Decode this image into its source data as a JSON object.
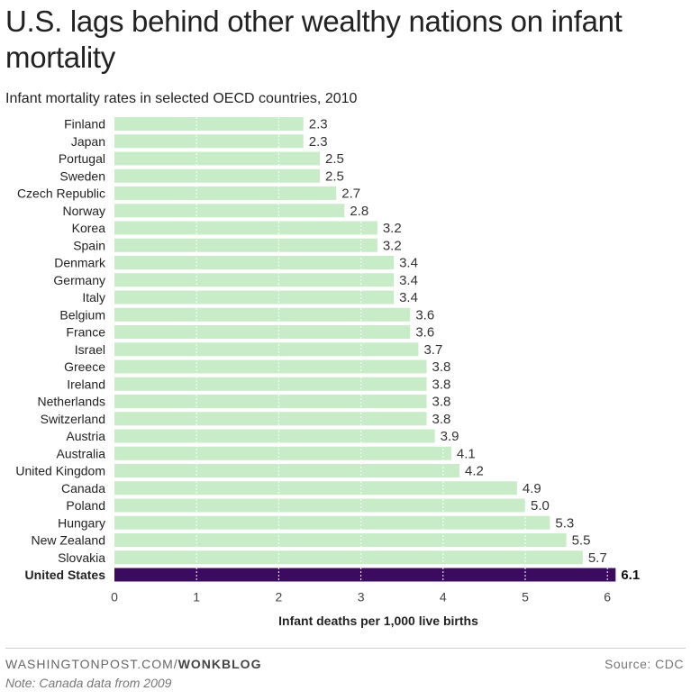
{
  "header": {
    "title": "U.S. lags behind other wealthy nations on infant mortality",
    "subtitle": "Infant mortality rates in selected OECD countries, 2010"
  },
  "footer": {
    "credit_site": "WASHINGTONPOST.COM/",
    "credit_blog": "WONKBLOG",
    "source": "Source: CDC",
    "note": "Note: Canada data from 2009"
  },
  "colors": {
    "bar": "#c8ecc8",
    "highlight": "#3a0b5e",
    "text": "#222222"
  },
  "chart_data": {
    "type": "bar",
    "orientation": "horizontal",
    "title": "Infant mortality rates in selected OECD countries, 2010",
    "xlabel": "Infant deaths per 1,000 live births",
    "ylabel": "",
    "xlim": [
      0,
      6.1
    ],
    "xticks": [
      0,
      1,
      2,
      3,
      4,
      5,
      6
    ],
    "grid": true,
    "highlight": "United States",
    "categories": [
      "Finland",
      "Japan",
      "Portugal",
      "Sweden",
      "Czech Republic",
      "Norway",
      "Korea",
      "Spain",
      "Denmark",
      "Germany",
      "Italy",
      "Belgium",
      "France",
      "Israel",
      "Greece",
      "Ireland",
      "Netherlands",
      "Switzerland",
      "Austria",
      "Australia",
      "United Kingdom",
      "Canada",
      "Poland",
      "Hungary",
      "New Zealand",
      "Slovakia",
      "United States"
    ],
    "values": [
      2.3,
      2.3,
      2.5,
      2.5,
      2.7,
      2.8,
      3.2,
      3.2,
      3.4,
      3.4,
      3.4,
      3.6,
      3.6,
      3.7,
      3.8,
      3.8,
      3.8,
      3.8,
      3.9,
      4.1,
      4.2,
      4.9,
      5.0,
      5.3,
      5.5,
      5.7,
      6.1
    ],
    "value_labels": [
      "2.3",
      "2.3",
      "2.5",
      "2.5",
      "2.7",
      "2.8",
      "3.2",
      "3.2",
      "3.4",
      "3.4",
      "3.4",
      "3.6",
      "3.6",
      "3.7",
      "3.8",
      "3.8",
      "3.8",
      "3.8",
      "3.9",
      "4.1",
      "4.2",
      "4.9",
      "5.0",
      "5.3",
      "5.5",
      "5.7",
      "6.1"
    ]
  }
}
